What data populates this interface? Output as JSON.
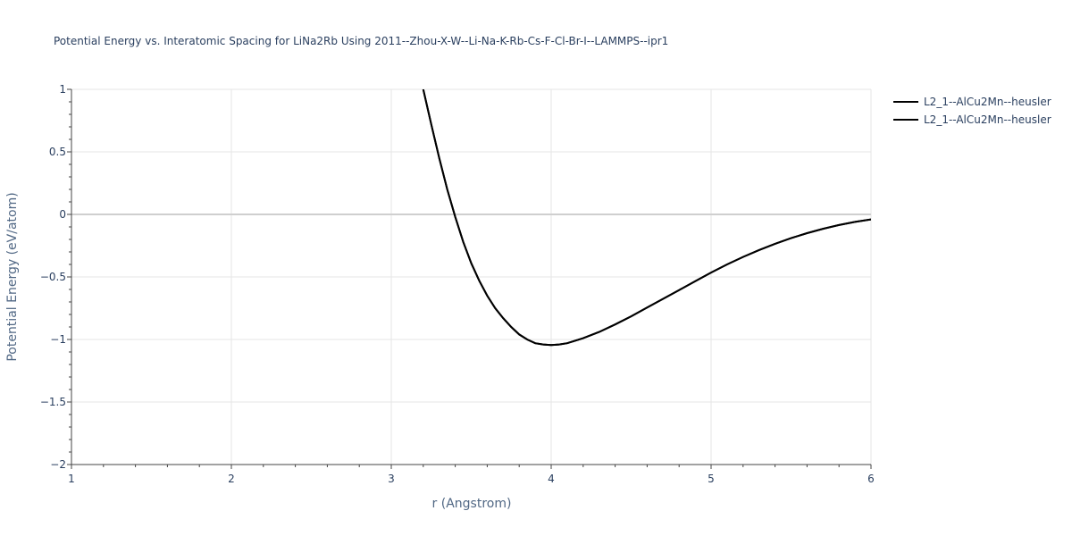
{
  "chart_data": {
    "type": "line",
    "title": "Potential Energy vs. Interatomic Spacing for LiNa2Rb Using 2011--Zhou-X-W--Li-Na-K-Rb-Cs-F-Cl-Br-I--LAMMPS--ipr1",
    "xlabel": "r (Angstrom)",
    "ylabel": "Potential Energy (eV/atom)",
    "xlim": [
      1,
      6
    ],
    "ylim": [
      -2,
      1
    ],
    "x_ticks": [
      "1",
      "2",
      "3",
      "4",
      "5",
      "6"
    ],
    "y_ticks": [
      "1",
      "0.5",
      "0",
      "−0.5",
      "−1",
      "−1.5",
      "−2"
    ],
    "grid": true,
    "legend_position": "top-right",
    "series": [
      {
        "name": "L2_1--AlCu2Mn--heusler",
        "color": "#000000",
        "x": [
          3.2,
          3.25,
          3.3,
          3.35,
          3.4,
          3.45,
          3.5,
          3.55,
          3.6,
          3.65,
          3.7,
          3.75,
          3.8,
          3.85,
          3.9,
          3.95,
          4.0,
          4.05,
          4.1,
          4.2,
          4.3,
          4.4,
          4.5,
          4.6,
          4.7,
          4.8,
          4.9,
          5.0,
          5.1,
          5.2,
          5.3,
          5.4,
          5.5,
          5.6,
          5.7,
          5.8,
          5.9,
          6.0
        ],
        "y": [
          1.0,
          0.72,
          0.45,
          0.2,
          -0.02,
          -0.22,
          -0.39,
          -0.53,
          -0.65,
          -0.75,
          -0.83,
          -0.9,
          -0.96,
          -1.0,
          -1.03,
          -1.04,
          -1.045,
          -1.04,
          -1.03,
          -0.99,
          -0.94,
          -0.88,
          -0.815,
          -0.745,
          -0.675,
          -0.605,
          -0.535,
          -0.465,
          -0.4,
          -0.34,
          -0.285,
          -0.235,
          -0.19,
          -0.15,
          -0.115,
          -0.085,
          -0.06,
          -0.04
        ]
      },
      {
        "name": "L2_1--AlCu2Mn--heusler",
        "color": "#000000",
        "x": [
          3.2,
          3.25,
          3.3,
          3.35,
          3.4,
          3.45,
          3.5,
          3.55,
          3.6,
          3.65,
          3.7,
          3.75,
          3.8,
          3.85,
          3.9,
          3.95,
          4.0,
          4.05,
          4.1,
          4.2,
          4.3,
          4.4,
          4.5,
          4.6,
          4.7,
          4.8,
          4.9,
          5.0,
          5.1,
          5.2,
          5.3,
          5.4,
          5.5,
          5.6,
          5.7,
          5.8,
          5.9,
          6.0
        ],
        "y": [
          1.0,
          0.72,
          0.45,
          0.2,
          -0.02,
          -0.22,
          -0.39,
          -0.53,
          -0.65,
          -0.75,
          -0.83,
          -0.9,
          -0.96,
          -1.0,
          -1.03,
          -1.04,
          -1.045,
          -1.04,
          -1.03,
          -0.99,
          -0.94,
          -0.88,
          -0.815,
          -0.745,
          -0.675,
          -0.605,
          -0.535,
          -0.465,
          -0.4,
          -0.34,
          -0.285,
          -0.235,
          -0.19,
          -0.15,
          -0.115,
          -0.085,
          -0.06,
          -0.04
        ]
      }
    ]
  }
}
